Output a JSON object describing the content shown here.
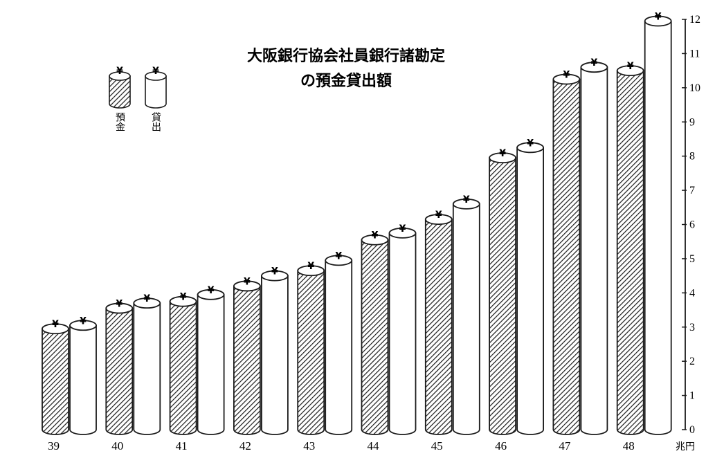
{
  "chart_data": {
    "type": "bar",
    "title_lines": [
      "大阪銀行協会社員銀行諸勘定",
      "の預金貸出額"
    ],
    "categories": [
      "39",
      "40",
      "41",
      "42",
      "43",
      "44",
      "45",
      "46",
      "47",
      "48"
    ],
    "series": [
      {
        "name": "預金",
        "values": [
          2.95,
          3.55,
          3.75,
          4.2,
          4.65,
          5.55,
          6.15,
          7.95,
          10.25,
          10.5
        ],
        "fill": "hatched"
      },
      {
        "name": "貸出",
        "values": [
          3.05,
          3.7,
          3.95,
          4.5,
          4.95,
          5.75,
          6.6,
          8.25,
          10.6,
          11.95
        ],
        "fill": "white"
      }
    ],
    "y_unit_label": "兆円",
    "y_ticks": [
      "0",
      "1",
      "2",
      "3",
      "4",
      "5",
      "6",
      "7",
      "8",
      "9",
      "10",
      "11",
      "12"
    ],
    "ylim": [
      0,
      12
    ],
    "y_axis_side": "right",
    "legend_position": "top-left",
    "bar_symbol": "¥",
    "colors": {
      "ink": "#1a1a1a",
      "background": "#ffffff"
    }
  }
}
